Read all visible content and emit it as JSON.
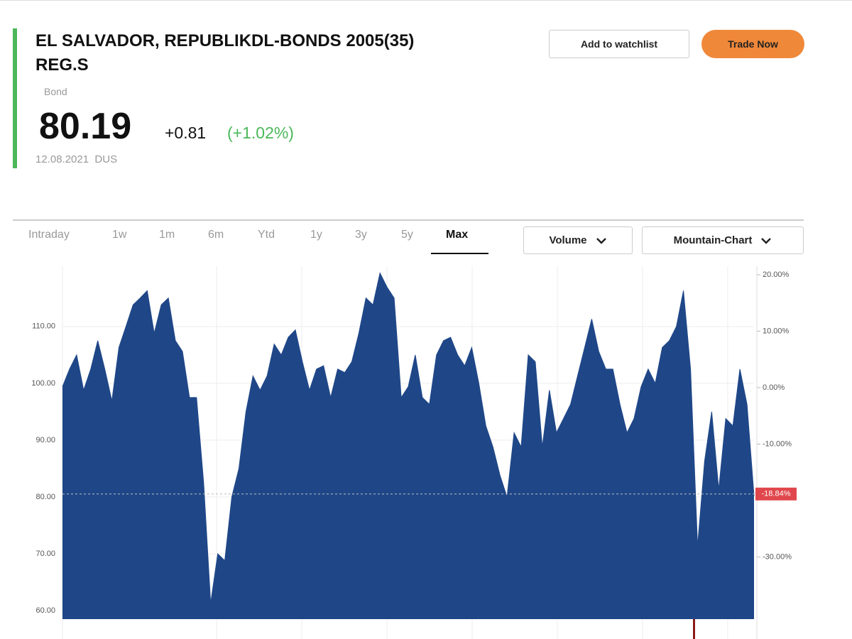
{
  "header": {
    "title_line1": "EL SALVADOR, REPUBLIKDL-BONDS 2005(35)",
    "title_line2": "REG.S",
    "kind": "Bond",
    "price": "80.19",
    "change": "+0.81",
    "change_pct": "(+1.02%)",
    "date": "12.08.2021",
    "exchange": "DUS"
  },
  "buttons": {
    "watchlist": "Add to watchlist",
    "trade": "Trade Now"
  },
  "tabs": [
    "Intraday",
    "1w",
    "1m",
    "6m",
    "Ytd",
    "1y",
    "3y",
    "5y",
    "Max"
  ],
  "dropdowns": [
    "Volume",
    "Mountain-Chart"
  ],
  "chart_data": {
    "type": "area",
    "color": "#1f4788",
    "values": [
      99.4,
      102.5,
      105,
      98.8,
      102.5,
      107.5,
      102.5,
      96.9,
      106.3,
      110,
      113.8,
      115,
      116.3,
      108.8,
      113.8,
      115,
      107.5,
      105.6,
      97.5,
      97.5,
      82.5,
      61.3,
      70,
      68.8,
      80,
      85,
      95,
      101.3,
      98.8,
      101.3,
      106.9,
      105,
      108.1,
      109.4,
      103.8,
      98.8,
      102.5,
      103.1,
      97.5,
      102.5,
      101.9,
      103.8,
      108.8,
      115,
      113.8,
      119.4,
      116.9,
      115,
      97.5,
      99.4,
      105,
      97.5,
      96.3,
      105,
      107.5,
      108.1,
      105,
      103.1,
      106.3,
      100,
      92.5,
      88.8,
      83.8,
      80,
      91.3,
      88.8,
      105,
      103.8,
      88.8,
      98.8,
      91.3,
      93.8,
      96.3,
      101.3,
      106.3,
      111.3,
      105.6,
      102.5,
      102.5,
      96.3,
      91.3,
      93.8,
      99.4,
      102.5,
      100,
      106.3,
      107.5,
      110,
      116.3,
      102.5,
      71.3,
      86.3,
      95,
      81.3,
      93.8,
      92.5,
      102.5,
      96.3,
      80.19
    ],
    "ylim": [
      58.5,
      120.6
    ],
    "yticks": [
      {
        "value": 60,
        "label": "60.00"
      },
      {
        "value": 70,
        "label": "70.00"
      },
      {
        "value": 80,
        "label": "80.00"
      },
      {
        "value": 90,
        "label": "90.00"
      },
      {
        "value": 100,
        "label": "100.00"
      },
      {
        "value": 110,
        "label": "110.00"
      }
    ],
    "y2lim": [
      -41,
      21.5
    ],
    "y2ticks": [
      {
        "value": 20,
        "label": "20.00%"
      },
      {
        "value": 10,
        "label": "10.00%"
      },
      {
        "value": 0,
        "label": "0.00%"
      },
      {
        "value": -10,
        "label": "-10.00%"
      },
      {
        "value": -30,
        "label": "-30.00%"
      }
    ],
    "last_label": {
      "value": -18.84,
      "label": "-18.84%"
    },
    "grid": true
  }
}
